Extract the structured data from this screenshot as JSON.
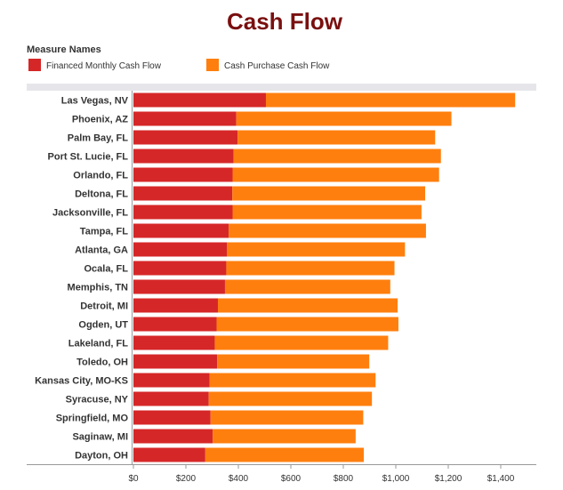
{
  "chart_data": {
    "type": "bar",
    "orientation": "horizontal",
    "stacked": true,
    "title": "Cash Flow",
    "legend": {
      "title": "Measure Names",
      "placement": "top-left",
      "entries": [
        "Financed Monthly Cash Flow",
        "Cash Purchase Cash Flow"
      ]
    },
    "colors": {
      "title": "#7a0f0f",
      "financed": "#d62728",
      "cash": "#ff7f0e",
      "header": "#e6e6ea",
      "axis": "#999999"
    },
    "categories": [
      "Las Vegas, NV",
      "Phoenix, AZ",
      "Palm Bay, FL",
      "Port St. Lucie, FL",
      "Orlando, FL",
      "Deltona, FL",
      "Jacksonville, FL",
      "Tampa, FL",
      "Atlanta, GA",
      "Ocala, FL",
      "Memphis, TN",
      "Detroit, MI",
      "Ogden, UT",
      "Lakeland, FL",
      "Toledo, OH",
      "Kansas City, MO-KS",
      "Syracuse, NY",
      "Springfield, MO",
      "Saginaw, MI",
      "Dayton, OH"
    ],
    "series": [
      {
        "name": "Financed Monthly Cash Flow",
        "values": [
          505,
          392,
          397,
          382,
          378,
          377,
          378,
          363,
          357,
          354,
          349,
          322,
          317,
          310,
          319,
          290,
          287,
          294,
          302,
          274
        ]
      },
      {
        "name": "Cash Purchase Cash Flow",
        "values": [
          950,
          820,
          753,
          790,
          787,
          735,
          720,
          752,
          678,
          641,
          630,
          685,
          693,
          661,
          580,
          633,
          622,
          582,
          545,
          604
        ]
      }
    ],
    "xlim": [
      0,
      1500
    ],
    "xticks": [
      0,
      200,
      400,
      600,
      800,
      1000,
      1200,
      1400
    ],
    "xticklabels": [
      "$0",
      "$200",
      "$400",
      "$600",
      "$800",
      "$1,000",
      "$1,200",
      "$1,400"
    ],
    "xlabel": "",
    "ylabel": "",
    "grid": false
  }
}
